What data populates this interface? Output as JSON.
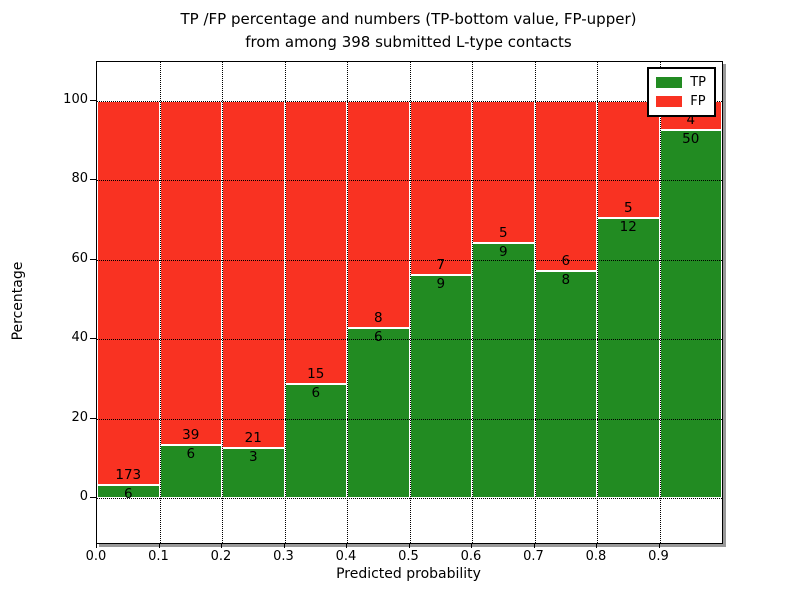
{
  "title": {
    "line1": "TP /FP percentage and numbers (TP-bottom value, FP-upper)",
    "line2": "from among 398 submitted L-type contacts"
  },
  "axes": {
    "xlabel": "Predicted probability",
    "ylabel": "Percentage",
    "x_ticks": [
      "0.0",
      "0.1",
      "0.2",
      "0.3",
      "0.4",
      "0.5",
      "0.6",
      "0.7",
      "0.8",
      "0.9"
    ],
    "y_ticks": [
      "0",
      "20",
      "40",
      "60",
      "80",
      "100"
    ]
  },
  "legend": {
    "items": [
      {
        "label": "TP",
        "color": "#228b22"
      },
      {
        "label": "FP",
        "color": "#f93222"
      }
    ]
  },
  "chart_data": {
    "type": "bar",
    "stacked": true,
    "normalized": "each bin stacks to 100%",
    "title": "TP /FP percentage and numbers (TP-bottom value, FP-upper) from among 398 submitted L-type contacts",
    "xlabel": "Predicted probability",
    "ylabel": "Percentage",
    "xlim": [
      0.0,
      1.0
    ],
    "ylim": [
      -11.3,
      109.8
    ],
    "grid": true,
    "grid_style": "dotted, drawn over bars",
    "legend_position": "upper right",
    "bin_edges": [
      0.0,
      0.1,
      0.2,
      0.3,
      0.4,
      0.5,
      0.6,
      0.7,
      0.8,
      0.9,
      1.0
    ],
    "categories": [
      "0.0-0.1",
      "0.1-0.2",
      "0.2-0.3",
      "0.3-0.4",
      "0.4-0.5",
      "0.5-0.6",
      "0.6-0.7",
      "0.7-0.8",
      "0.8-0.9",
      "0.9-1.0"
    ],
    "series": [
      {
        "name": "TP",
        "color": "#228b22",
        "counts": [
          6,
          6,
          3,
          6,
          6,
          9,
          9,
          8,
          12,
          50
        ],
        "percent": [
          3.4,
          13.3,
          12.5,
          28.6,
          42.9,
          56.2,
          64.3,
          57.1,
          70.6,
          92.6
        ]
      },
      {
        "name": "FP",
        "color": "#f93222",
        "counts": [
          173,
          39,
          21,
          15,
          8,
          7,
          5,
          6,
          5,
          4
        ],
        "percent": [
          96.6,
          86.7,
          87.5,
          71.4,
          57.1,
          43.8,
          35.7,
          42.9,
          29.4,
          7.4
        ]
      }
    ],
    "total_contacts": 398
  }
}
